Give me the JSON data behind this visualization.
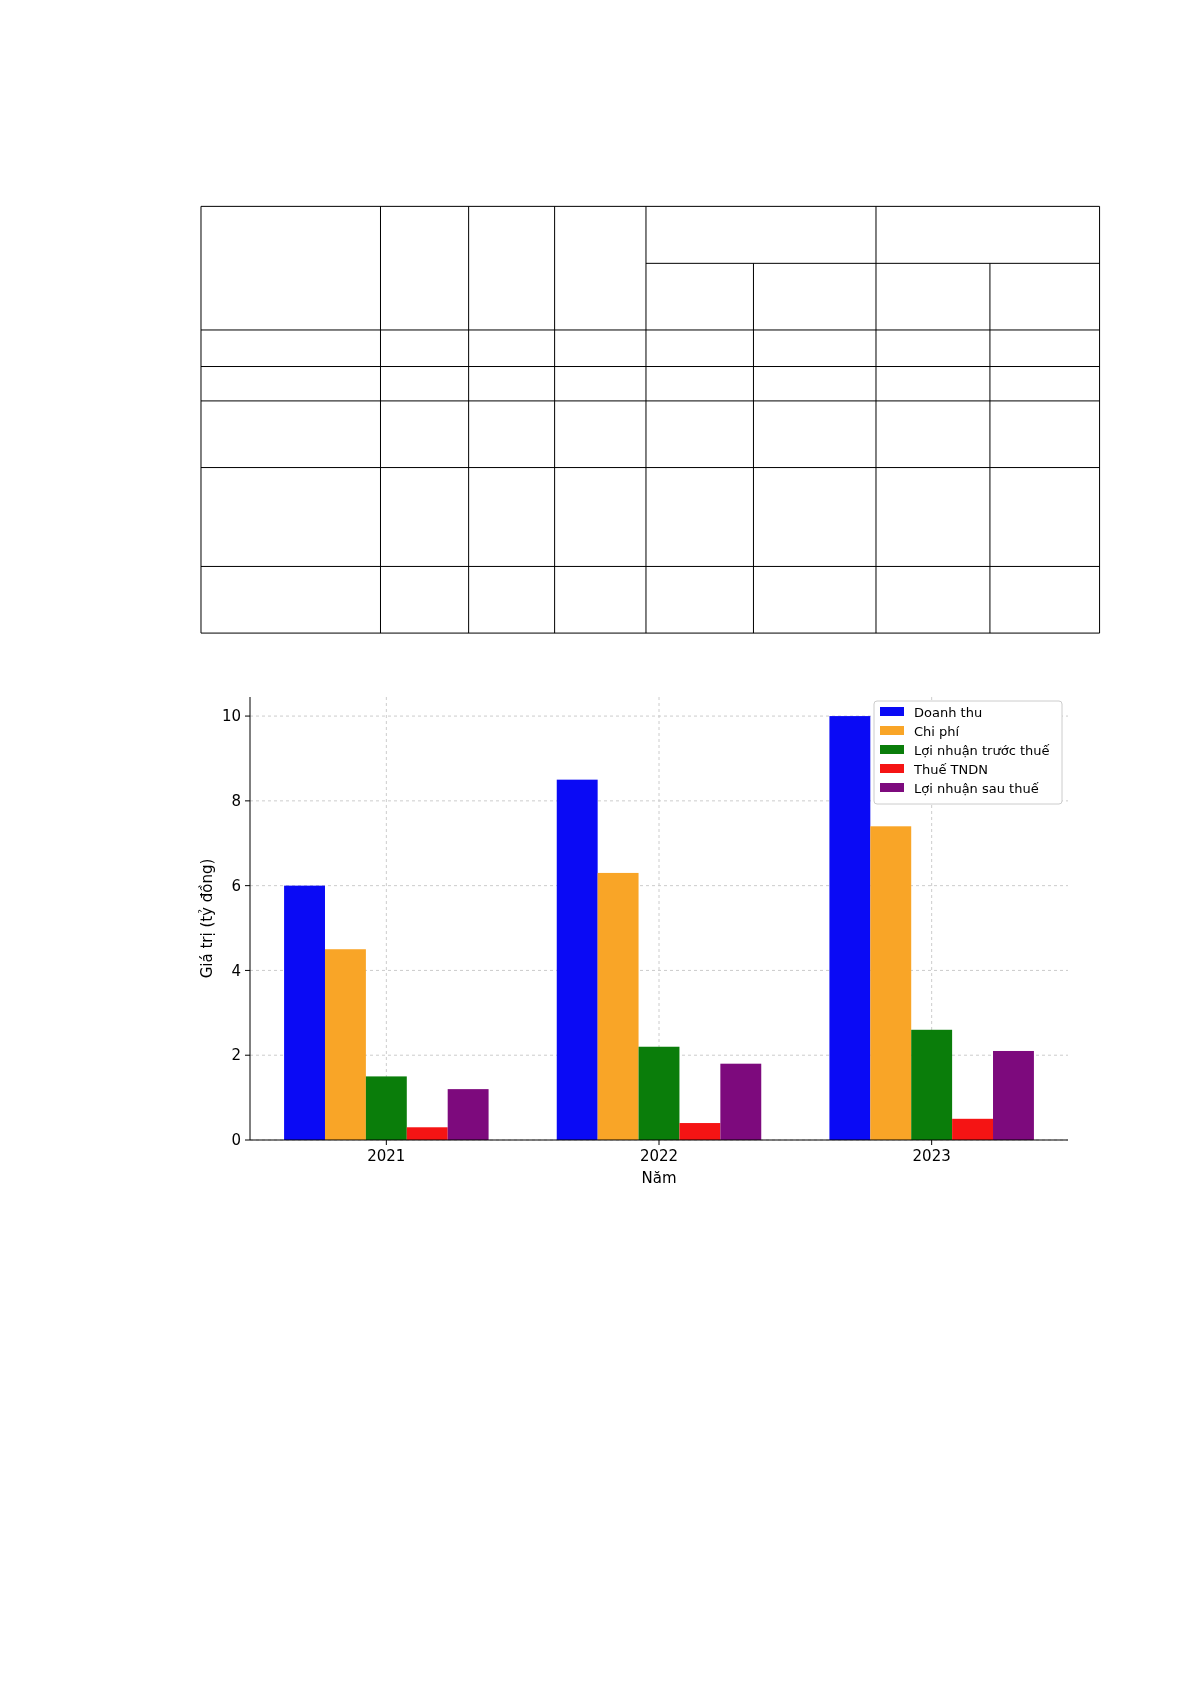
{
  "chart_data": {
    "type": "bar",
    "xlabel": "Năm",
    "ylabel": "Giá trị (tỷ đồng)",
    "categories": [
      "2021",
      "2022",
      "2023"
    ],
    "series": [
      {
        "name": "Doanh thu",
        "color": "#0a0af5",
        "values": [
          6,
          8.5,
          10
        ]
      },
      {
        "name": "Chi phí",
        "color": "#f9a527",
        "values": [
          4.5,
          6.3,
          7.4
        ]
      },
      {
        "name": "Lợi nhuận trước thuế",
        "color": "#0a7d0a",
        "values": [
          1.5,
          2.2,
          2.6
        ]
      },
      {
        "name": "Thuế TNDN",
        "color": "#f51414",
        "values": [
          0.3,
          0.4,
          0.5
        ]
      },
      {
        "name": "Lợi nhuận sau thuế",
        "color": "#7d0a7d",
        "values": [
          1.2,
          1.8,
          2.1
        ]
      }
    ],
    "ylim": [
      0,
      10.45
    ],
    "yticks": [
      0,
      2,
      4,
      6,
      8,
      10
    ],
    "grid": true,
    "legend": "top right"
  }
}
